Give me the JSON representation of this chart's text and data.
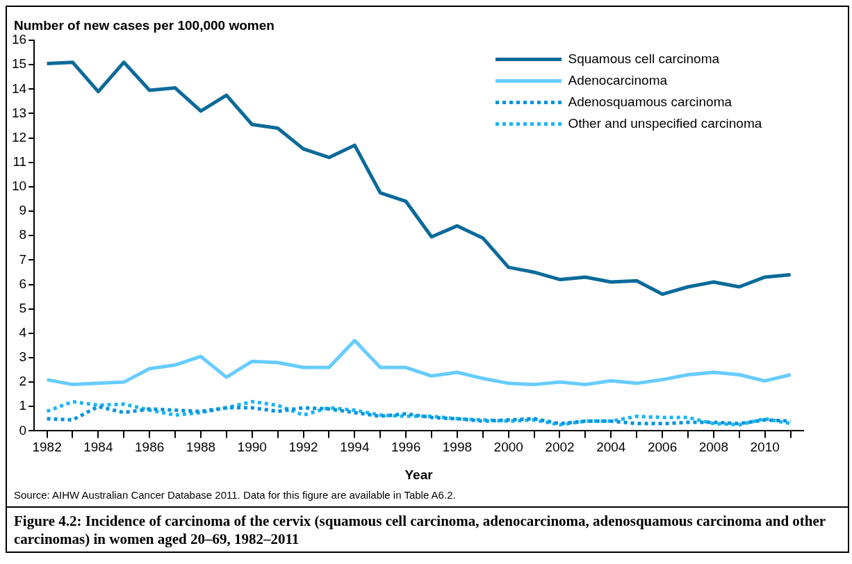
{
  "chart_data": {
    "type": "line",
    "title": "Figure 4.2: Incidence of carcinoma of the cervix (squamous cell carcinoma, adenocarcinoma, adenosquamous carcinoma and other carcinomas) in women aged 20–69, 1982–2011",
    "ylabel": "Number of new cases per 100,000 women",
    "xlabel": "Year",
    "annotations": [
      "Source: AIHW Australian Cancer Database 2011. Data for this figure are available in Table A6.2."
    ],
    "x": [
      1982,
      1983,
      1984,
      1985,
      1986,
      1987,
      1988,
      1989,
      1990,
      1991,
      1992,
      1993,
      1994,
      1995,
      1996,
      1997,
      1998,
      1999,
      2000,
      2001,
      2002,
      2003,
      2004,
      2005,
      2006,
      2007,
      2008,
      2009,
      2010,
      2011
    ],
    "series": [
      {
        "name": "Squamous cell carcinoma",
        "color": "#0a6a9a",
        "line_style": "solid",
        "values": [
          15.05,
          15.1,
          13.9,
          15.1,
          13.95,
          14.05,
          13.1,
          13.75,
          12.55,
          12.4,
          11.55,
          11.2,
          11.7,
          9.75,
          9.4,
          7.95,
          8.4,
          7.9,
          6.7,
          6.5,
          6.2,
          6.3,
          6.1,
          6.15,
          5.6,
          5.9,
          6.1,
          5.9,
          6.3,
          6.4
        ]
      },
      {
        "name": "Adenocarcinoma",
        "color": "#66ccff",
        "line_style": "solid",
        "values": [
          2.1,
          1.9,
          1.95,
          2.0,
          2.55,
          2.7,
          3.05,
          2.2,
          2.85,
          2.8,
          2.6,
          2.6,
          3.7,
          2.6,
          2.6,
          2.25,
          2.4,
          2.15,
          1.95,
          1.9,
          2.0,
          1.9,
          2.05,
          1.95,
          2.1,
          2.3,
          2.4,
          2.3,
          2.05,
          2.3
        ]
      },
      {
        "name": "Adenosquamous carcinoma",
        "color": "#0093dd",
        "line_style": "dotted",
        "values": [
          0.5,
          0.45,
          1.0,
          0.75,
          0.9,
          0.85,
          0.8,
          0.95,
          0.95,
          0.8,
          0.95,
          0.9,
          0.75,
          0.6,
          0.7,
          0.55,
          0.5,
          0.4,
          0.45,
          0.5,
          0.3,
          0.4,
          0.4,
          0.3,
          0.3,
          0.35,
          0.35,
          0.3,
          0.45,
          0.4
        ]
      },
      {
        "name": "Other and unspecified carcinoma",
        "color": "#1ab4f5",
        "line_style": "dotted",
        "values": [
          0.8,
          1.2,
          1.05,
          1.1,
          0.85,
          0.65,
          0.75,
          0.95,
          1.2,
          1.05,
          0.65,
          0.95,
          0.85,
          0.65,
          0.6,
          0.6,
          0.5,
          0.45,
          0.4,
          0.45,
          0.25,
          0.4,
          0.4,
          0.6,
          0.55,
          0.55,
          0.3,
          0.25,
          0.5,
          0.3
        ]
      }
    ],
    "xlim": [
      1981.5,
      2011.5
    ],
    "xticks": [
      1982,
      {
        "value": 1983,
        "label": null
      },
      1984,
      {
        "value": 1985,
        "label": null
      },
      1986,
      {
        "value": 1987,
        "label": null
      },
      1988,
      {
        "value": 1989,
        "label": null
      },
      1990,
      {
        "value": 1991,
        "label": null
      },
      1992,
      {
        "value": 1993,
        "label": null
      },
      1994,
      {
        "value": 1995,
        "label": null
      },
      1996,
      {
        "value": 1997,
        "label": null
      },
      1998,
      {
        "value": 1999,
        "label": null
      },
      2000,
      {
        "value": 2001,
        "label": null
      },
      2002,
      {
        "value": 2003,
        "label": null
      },
      2004,
      {
        "value": 2005,
        "label": null
      },
      2006,
      {
        "value": 2007,
        "label": null
      },
      2008,
      {
        "value": 2009,
        "label": null
      },
      2010,
      {
        "value": 2011,
        "label": null
      }
    ],
    "ylim": [
      0,
      16
    ],
    "yticks": [
      0,
      1,
      2,
      3,
      4,
      5,
      6,
      7,
      8,
      9,
      10,
      11,
      12,
      13,
      14,
      15,
      16
    ],
    "grid": false,
    "legend": "top right",
    "marker": "none"
  }
}
